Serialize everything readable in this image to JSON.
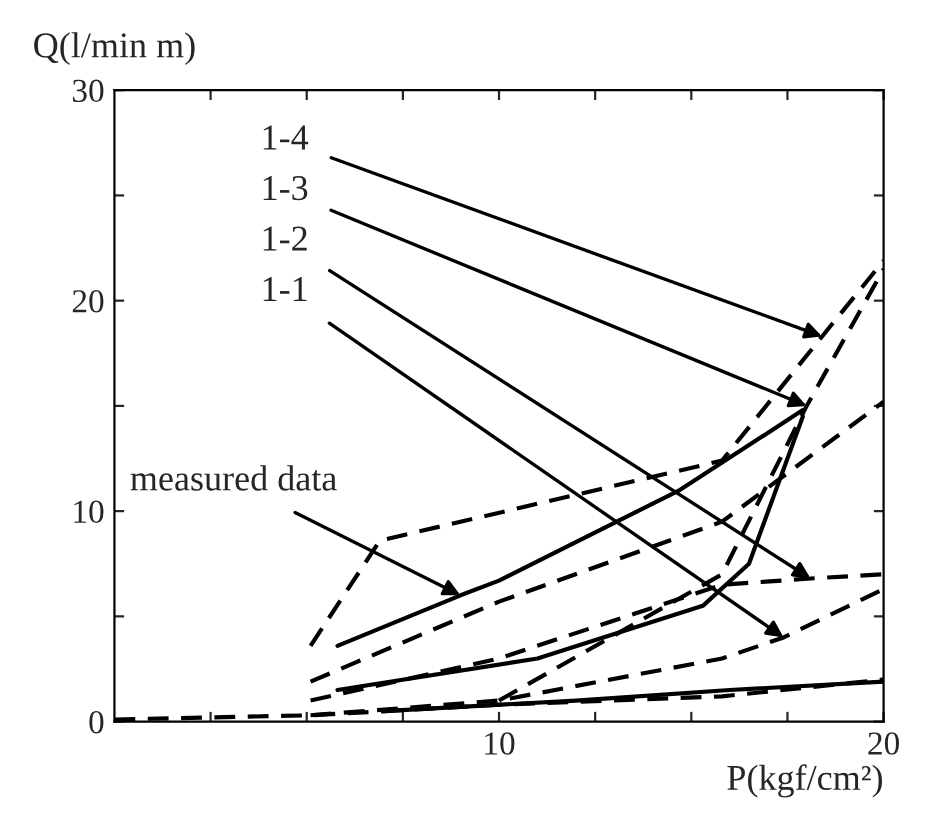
{
  "chart_data": {
    "type": "line",
    "xlabel": "P(kgf/cm²)",
    "ylabel": "Q(l/min m)",
    "xlim": [
      0,
      20
    ],
    "ylim": [
      0,
      30
    ],
    "xticks": [
      {
        "value": 2.5,
        "label": null
      },
      {
        "value": 5,
        "label": null
      },
      {
        "value": 7.5,
        "label": null
      },
      10,
      {
        "value": 12.5,
        "label": null
      },
      {
        "value": 15,
        "label": null
      },
      {
        "value": 17.5,
        "label": null
      },
      20
    ],
    "yticks": [
      0,
      {
        "value": 5,
        "label": null
      },
      10,
      {
        "value": 15,
        "label": null
      },
      20,
      {
        "value": 25,
        "label": null
      },
      30
    ],
    "grid": false,
    "marker": "none",
    "series": [
      {
        "color": "#000000",
        "line_style": "solid",
        "x": [
          5.8,
          9,
          10,
          14.7,
          17.9
        ],
        "values": [
          3.6,
          6.0,
          6.7,
          11.0,
          14.8
        ]
      },
      {
        "color": "#000000",
        "line_style": "solid",
        "x": [
          5.8,
          11,
          15.3,
          16.5,
          17.9
        ],
        "values": [
          1.5,
          3.0,
          5.5,
          7.5,
          14.5
        ]
      },
      {
        "color": "#000000",
        "line_style": "solid",
        "x": [
          7,
          12,
          16,
          20
        ],
        "values": [
          0.5,
          1.0,
          1.5,
          1.9
        ]
      },
      {
        "color": "#000000",
        "line_style": "dashed",
        "x": [
          5.1,
          6.9,
          15.8,
          18.4,
          20
        ],
        "values": [
          3.6,
          8.6,
          12.4,
          18.3,
          21.9
        ]
      },
      {
        "color": "#000000",
        "line_style": "dashed",
        "x": [
          5.1,
          10,
          15.8,
          20
        ],
        "values": [
          1.9,
          5.7,
          9.5,
          15.2
        ]
      },
      {
        "color": "#000000",
        "line_style": "dashed",
        "x": [
          5.1,
          10,
          15.8,
          18.1,
          20
        ],
        "values": [
          1.0,
          3.0,
          6.5,
          6.8,
          7.0
        ]
      },
      {
        "color": "#000000",
        "line_style": "dashed",
        "x": [
          5.1,
          10,
          15.8,
          17.4,
          20
        ],
        "values": [
          0.3,
          1.0,
          3.0,
          4.0,
          6.3
        ]
      },
      {
        "color": "#000000",
        "line_style": "dashed",
        "x": [
          0,
          5.1,
          10,
          15.8,
          20
        ],
        "values": [
          0.1,
          0.3,
          0.8,
          1.2,
          2.0
        ]
      },
      {
        "color": "#000000",
        "line_style": "dashed",
        "x": [
          10,
          15.8,
          18,
          20
        ],
        "values": [
          1.0,
          7.0,
          15.0,
          21.5
        ]
      }
    ],
    "annotations": [
      {
        "text": "1-4",
        "x": 18.4,
        "y": 18.3
      },
      {
        "text": "1-3",
        "x": 18,
        "y": 15.0
      },
      {
        "text": "1-2",
        "x": 18.1,
        "y": 6.8
      },
      {
        "text": "1-1",
        "x": 17.4,
        "y": 4.0
      },
      {
        "text": "measured data",
        "x": 9,
        "y": 6.0
      }
    ]
  }
}
